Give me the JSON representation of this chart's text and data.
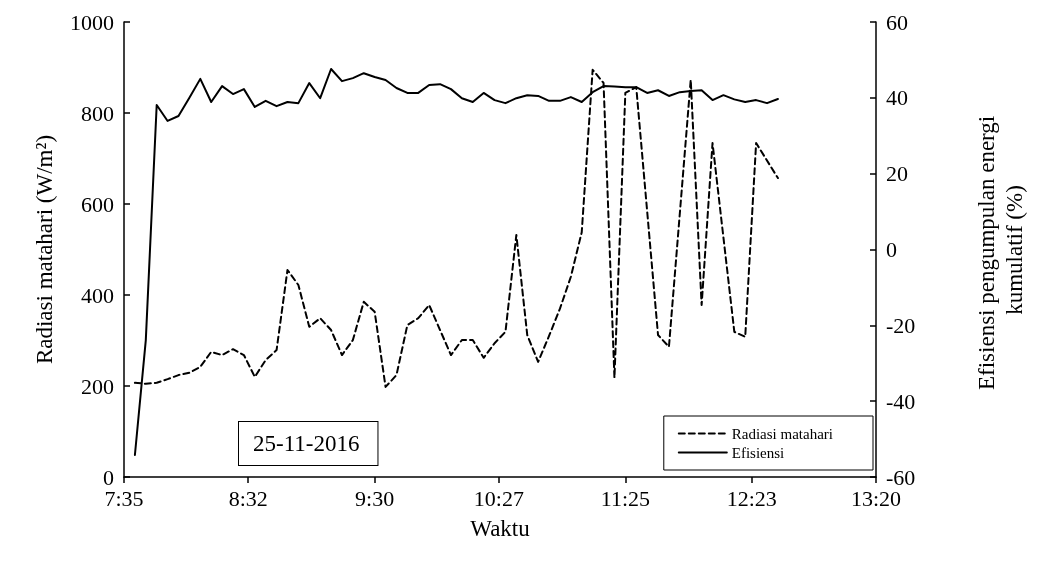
{
  "chart_data": {
    "type": "line",
    "xlabel": "Waktu",
    "ylabel": "Radiasi matahari (W/m²)",
    "y2label": "Efisiensi pengumpulan energi kumulatif (%)",
    "annotations": [
      "25-11-2016"
    ],
    "xlim": [
      7.5833,
      13.3333
    ],
    "xticks": [
      {
        "value": 7.5833,
        "label": "7:35"
      },
      {
        "value": 8.5333,
        "label": "8:32"
      },
      {
        "value": 9.5,
        "label": "9:30"
      },
      {
        "value": 10.45,
        "label": "10:27"
      },
      {
        "value": 11.4167,
        "label": "11:25"
      },
      {
        "value": 12.3833,
        "label": "12:23"
      },
      {
        "value": 13.3333,
        "label": "13:20"
      }
    ],
    "ylim": [
      0,
      1000
    ],
    "yticks": [
      0,
      200,
      400,
      600,
      800,
      1000
    ],
    "y2lim": [
      -60,
      60
    ],
    "y2ticks": [
      -60,
      -40,
      -20,
      0,
      20,
      40,
      60
    ],
    "grid": false,
    "legend": "bottom right",
    "marker": "none",
    "series": [
      {
        "name": "Radiasi matahari",
        "color": "#000000",
        "line_style": "dashed",
        "x": [
          7.6667,
          7.75,
          7.8333,
          7.9167,
          8.0,
          8.0833,
          8.1667,
          8.25,
          8.3333,
          8.4167,
          8.5,
          8.5833,
          8.6667,
          8.75,
          8.8333,
          8.9167,
          9.0,
          9.0833,
          9.1667,
          9.25,
          9.3333,
          9.4167,
          9.5,
          9.5833,
          9.6667,
          9.75,
          9.8333,
          9.9167,
          10.0,
          10.0833,
          10.1667,
          10.25,
          10.3333,
          10.4167,
          10.5,
          10.5833,
          10.6667,
          10.75,
          10.8333,
          10.9167,
          11.0,
          11.0833,
          11.1667,
          11.25,
          11.3333,
          11.4167,
          11.5,
          11.6667,
          11.75,
          11.9167,
          12.0,
          12.0833,
          12.25,
          12.3333,
          12.4167,
          12.5833
        ],
        "values": [
          207,
          205,
          207,
          215,
          224,
          229,
          242,
          275,
          268,
          281,
          268,
          220,
          257,
          279,
          455,
          422,
          330,
          349,
          323,
          268,
          301,
          385,
          363,
          198,
          224,
          334,
          349,
          378,
          323,
          268,
          301,
          301,
          262,
          294,
          319,
          532,
          312,
          253,
          310,
          370,
          440,
          538,
          895,
          866,
          218,
          844,
          857,
          312,
          286,
          873,
          378,
          734,
          319,
          308,
          734,
          657
        ]
      },
      {
        "name": "Efisiensi",
        "color": "#000000",
        "line_style": "solid",
        "axis": "y2",
        "x": [
          7.6667,
          7.75,
          7.8333,
          7.9167,
          8.0,
          8.0833,
          8.1667,
          8.25,
          8.3333,
          8.4167,
          8.5,
          8.5833,
          8.6667,
          8.75,
          8.8333,
          8.9167,
          9.0,
          9.0833,
          9.1667,
          9.25,
          9.3333,
          9.4167,
          9.5,
          9.5833,
          9.6667,
          9.75,
          9.8333,
          9.9167,
          10.0,
          10.0833,
          10.1667,
          10.25,
          10.3333,
          10.4167,
          10.5,
          10.5833,
          10.6667,
          10.75,
          10.8333,
          10.9167,
          11.0,
          11.0833,
          11.1667,
          11.25,
          11.3333,
          11.4167,
          11.5,
          11.5833,
          11.6667,
          11.75,
          11.8333,
          11.9167,
          12.0,
          12.0833,
          12.1667,
          12.25,
          12.3333,
          12.4167,
          12.5,
          12.5833
        ],
        "values": [
          -54.2,
          -23.9,
          38.1,
          33.9,
          35.2,
          40,
          45,
          38.9,
          43.1,
          41,
          42.3,
          37.6,
          39.2,
          37.8,
          38.9,
          38.6,
          43.9,
          39.9,
          47.6,
          44.4,
          45.2,
          46.5,
          45.5,
          44.7,
          42.6,
          41.3,
          41.3,
          43.4,
          43.6,
          42.3,
          39.9,
          38.9,
          41.3,
          39.4,
          38.6,
          39.9,
          40.7,
          40.5,
          39.2,
          39.2,
          40.2,
          38.9,
          41.5,
          43.1,
          43,
          42.8,
          42.8,
          41.3,
          42,
          40.5,
          41.5,
          41.8,
          42,
          39.4,
          40.7,
          39.6,
          38.9,
          39.4,
          38.6,
          39.7
        ]
      }
    ]
  }
}
